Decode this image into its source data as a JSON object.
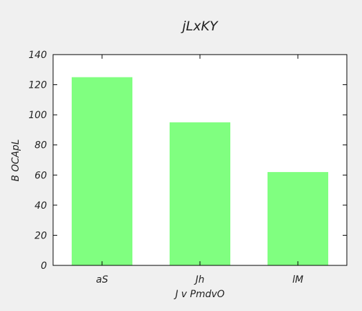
{
  "chart_data": {
    "type": "bar",
    "title": "jLxKY",
    "xlabel": "J v PmdvO",
    "ylabel": "B  OCApL",
    "categories": [
      "aS",
      "Jh",
      "lM"
    ],
    "values": [
      125,
      95,
      62
    ],
    "ylim": [
      0,
      140
    ],
    "yticks": [
      0,
      20,
      40,
      60,
      80,
      100,
      120,
      140
    ],
    "grid": false,
    "legend": "none",
    "bar_color": "#80ff80",
    "plot_background": "#ffffff",
    "figure_background": "#f0f0f0"
  }
}
